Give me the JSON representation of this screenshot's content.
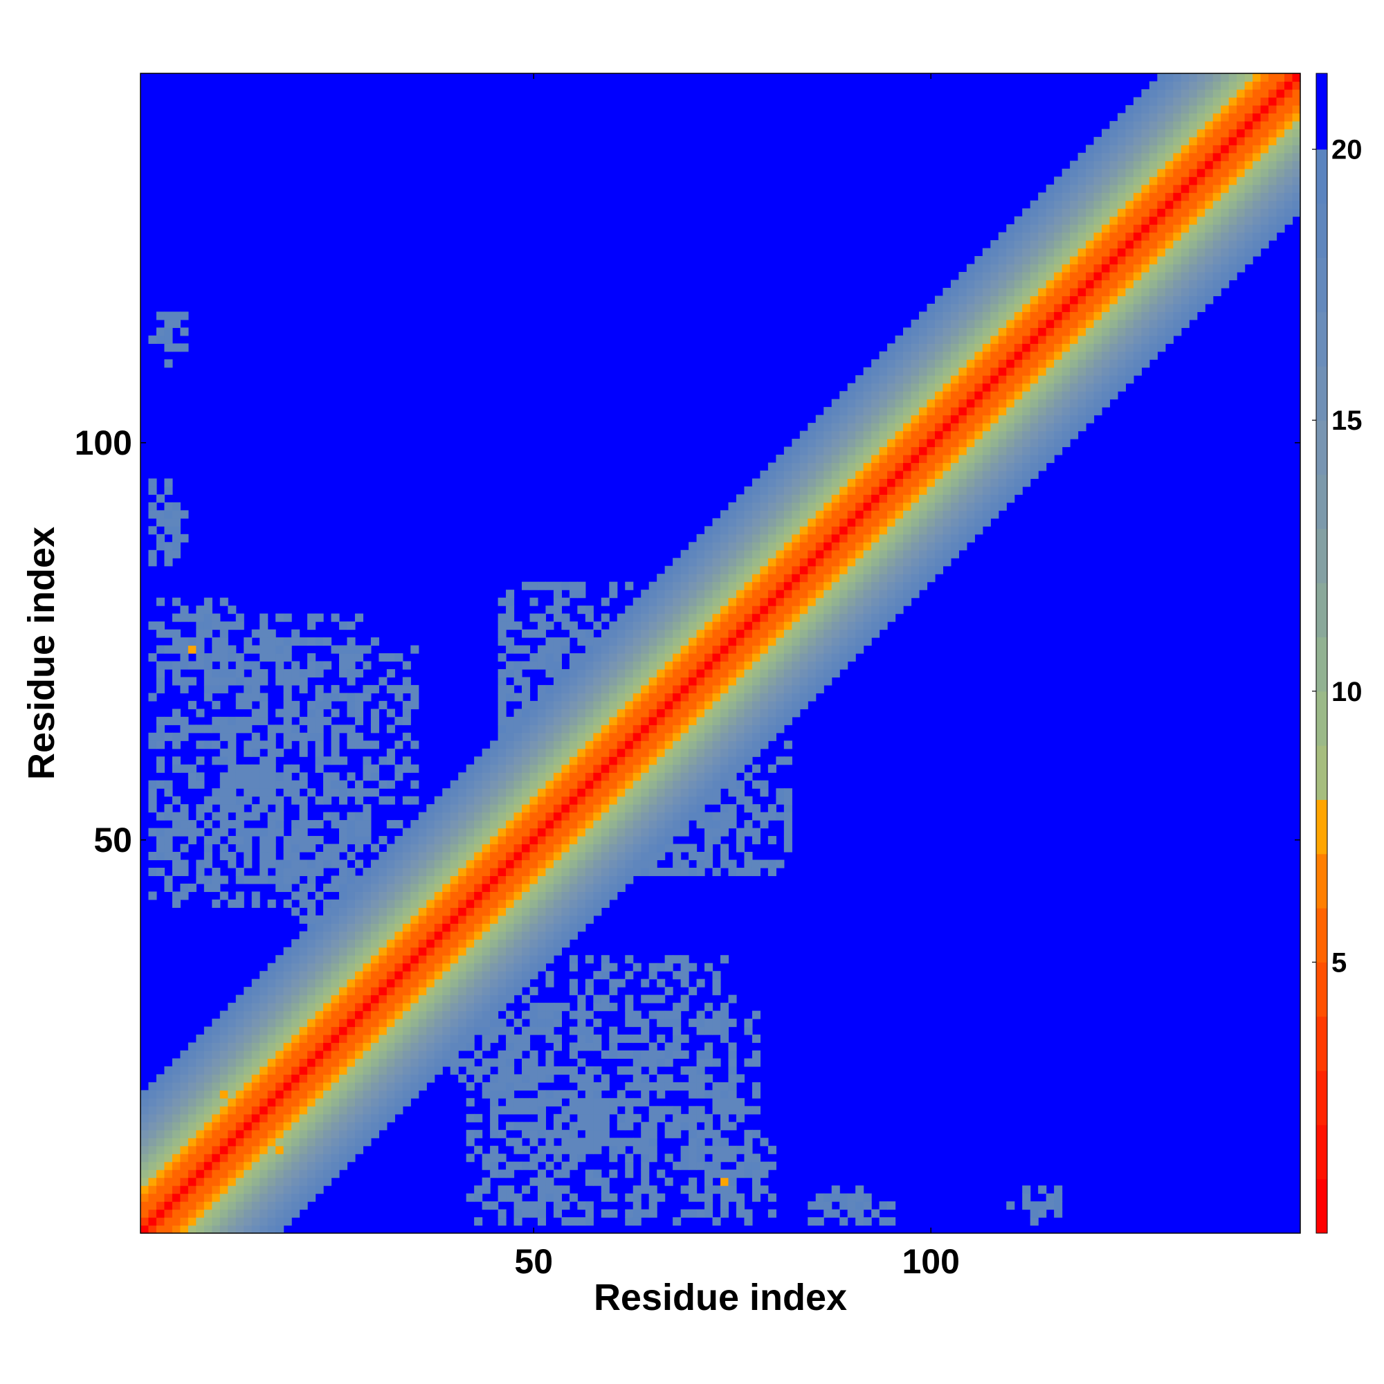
{
  "chart_data": {
    "type": "heatmap",
    "xlabel": "Residue index",
    "ylabel": "Residue index",
    "xlim": [
      0.5,
      146.5
    ],
    "ylim": [
      0.5,
      146.5
    ],
    "x_ticks": [
      50,
      100
    ],
    "y_ticks": [
      50,
      100
    ],
    "n_residues": 146,
    "colorbar": {
      "range": [
        0,
        21.4
      ],
      "ticks": [
        5,
        10,
        15,
        20
      ],
      "bins": [
        {
          "from": 0.0,
          "to": 1.0,
          "color": "#ff0000"
        },
        {
          "from": 1.0,
          "to": 2.0,
          "color": "#ff1200"
        },
        {
          "from": 2.0,
          "to": 3.0,
          "color": "#ff2400"
        },
        {
          "from": 3.0,
          "to": 4.0,
          "color": "#ff3a00"
        },
        {
          "from": 4.0,
          "to": 5.0,
          "color": "#ff5000"
        },
        {
          "from": 5.0,
          "to": 6.0,
          "color": "#ff6400"
        },
        {
          "from": 6.0,
          "to": 7.0,
          "color": "#ff7f00"
        },
        {
          "from": 7.0,
          "to": 8.0,
          "color": "#ffa500"
        },
        {
          "from": 8.0,
          "to": 9.0,
          "color": "#a6bd7e"
        },
        {
          "from": 9.0,
          "to": 10.0,
          "color": "#9bb988"
        },
        {
          "from": 10.0,
          "to": 11.0,
          "color": "#92b292"
        },
        {
          "from": 11.0,
          "to": 12.0,
          "color": "#8aa89a"
        },
        {
          "from": 12.0,
          "to": 13.0,
          "color": "#84a0a3"
        },
        {
          "from": 13.0,
          "to": 14.0,
          "color": "#7c99ab"
        },
        {
          "from": 14.0,
          "to": 15.0,
          "color": "#7895b2"
        },
        {
          "from": 15.0,
          "to": 16.0,
          "color": "#7090b6"
        },
        {
          "from": 16.0,
          "to": 17.0,
          "color": "#6a8dba"
        },
        {
          "from": 17.0,
          "to": 18.0,
          "color": "#6489bc"
        },
        {
          "from": 18.0,
          "to": 19.0,
          "color": "#5f86bd"
        },
        {
          "from": 19.0,
          "to": 20.0,
          "color": "#5b84bf"
        },
        {
          "from": 20.0,
          "to": 21.4,
          "color": "#0000ff"
        }
      ]
    },
    "diagonal_band_distance": [
      0,
      3.8,
      5.3,
      5.8,
      6.5,
      7.5,
      8.5,
      9.5,
      10.5,
      11.5,
      12.5,
      13.5,
      14.5,
      15.5,
      16.5,
      17.5,
      18.5,
      19.5
    ],
    "off_diagonal_contact_regions": [
      {
        "i": [
          3,
          12
        ],
        "j": [
          70,
          80
        ],
        "distance": 18
      },
      {
        "i": [
          3,
          20
        ],
        "j": [
          45,
          65
        ],
        "distance": 18
      },
      {
        "i": [
          10,
          35
        ],
        "j": [
          55,
          75
        ],
        "distance": 18
      },
      {
        "i": [
          20,
          35
        ],
        "j": [
          40,
          52
        ],
        "distance": 18
      },
      {
        "i": [
          42,
          60
        ],
        "j": [
          2,
          30
        ],
        "distance": 18
      },
      {
        "i": [
          62,
          78
        ],
        "j": [
          2,
          28
        ],
        "distance": 18
      },
      {
        "i": [
          46,
          62
        ],
        "j": [
          62,
          78
        ],
        "distance": 18
      },
      {
        "i": [
          65,
          82
        ],
        "j": [
          46,
          62
        ],
        "distance": 18
      },
      {
        "i": [
          85,
          95
        ],
        "j": [
          2,
          5
        ],
        "distance": 18
      },
      {
        "i": [
          110,
          116
        ],
        "j": [
          2,
          4
        ],
        "distance": 18
      },
      {
        "i": [
          3,
          6
        ],
        "j": [
          112,
          116
        ],
        "distance": 18
      },
      {
        "i": [
          3,
          6
        ],
        "j": [
          88,
          93
        ],
        "distance": 18
      }
    ],
    "close_contacts": [
      {
        "i": 7,
        "j": 74,
        "distance": 7
      },
      {
        "i": 74,
        "j": 7,
        "distance": 7
      },
      {
        "i": 11,
        "j": 18,
        "distance": 7
      },
      {
        "i": 18,
        "j": 11,
        "distance": 7
      }
    ],
    "grid": false,
    "legend": "colorbar-right"
  }
}
